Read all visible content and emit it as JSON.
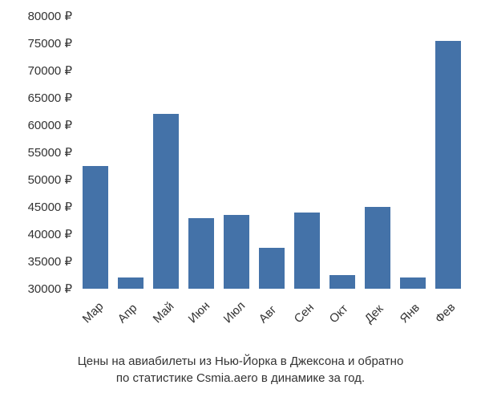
{
  "chart": {
    "type": "bar",
    "categories": [
      "Мар",
      "Апр",
      "Май",
      "Июн",
      "Июл",
      "Авг",
      "Сен",
      "Окт",
      "Дек",
      "Янв",
      "Фев"
    ],
    "values": [
      52500,
      32000,
      62000,
      43000,
      43500,
      37500,
      44000,
      32500,
      45000,
      32000,
      75500
    ],
    "bar_color": "#4472a8",
    "background_color": "#ffffff",
    "y_axis": {
      "min": 30000,
      "max": 80000,
      "step": 5000,
      "suffix": " ₽",
      "ticks": [
        30000,
        35000,
        40000,
        45000,
        50000,
        55000,
        60000,
        65000,
        70000,
        75000,
        80000
      ]
    },
    "label_fontsize": 15,
    "label_color": "#333333",
    "bar_gap": 12,
    "bar_max_width": 32,
    "x_label_rotation": -45
  },
  "caption_line1": "Цены на авиабилеты из Нью-Йорка в Джексона и обратно",
  "caption_line2": "по статистике Csmia.aero в динамике за год."
}
